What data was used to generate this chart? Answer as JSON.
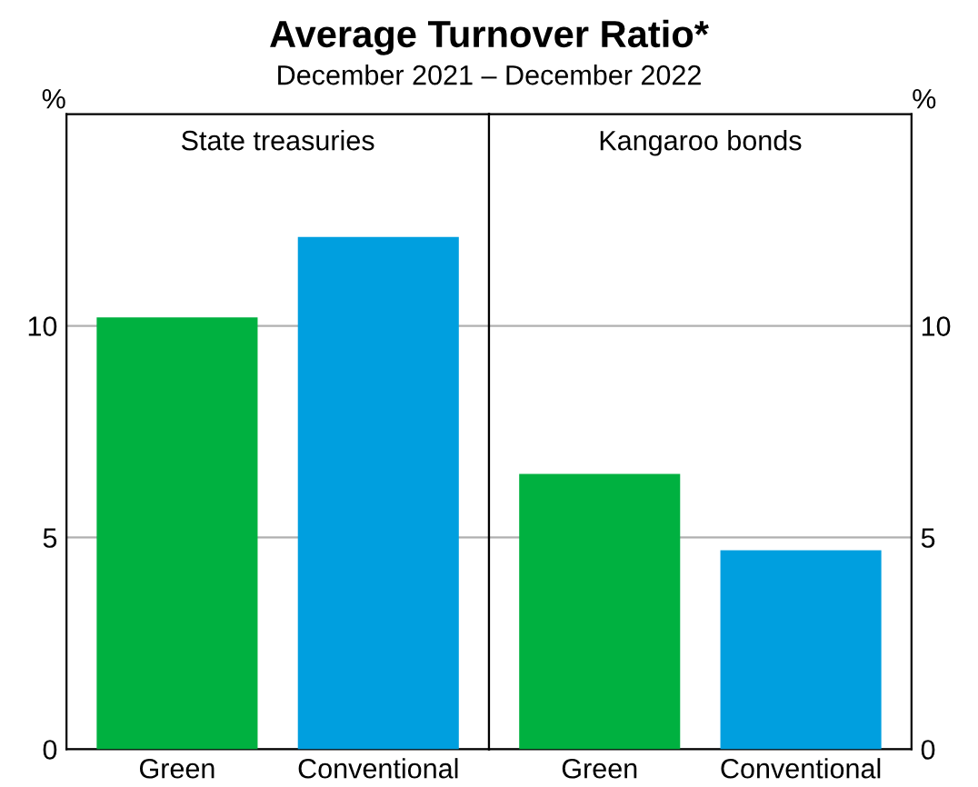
{
  "chart_data": [
    {
      "type": "bar",
      "title": "State treasuries",
      "ylabel": "%",
      "annotations": [
        "Average Turnover Ratio*",
        "December 2021 – December 2022"
      ],
      "categories": [
        "Green",
        "Conventional"
      ],
      "values": [
        10.2,
        12.1
      ],
      "colors": [
        "#00b140",
        "#009fdf"
      ],
      "ylim": [
        0,
        15
      ],
      "yticks": [
        0,
        5,
        10
      ],
      "grid": "y"
    },
    {
      "type": "bar",
      "title": "Kangaroo bonds",
      "ylabel": "%",
      "categories": [
        "Green",
        "Conventional"
      ],
      "values": [
        6.5,
        4.7
      ],
      "colors": [
        "#00b140",
        "#009fdf"
      ],
      "ylim": [
        0,
        15
      ],
      "yticks": [
        0,
        5,
        10
      ],
      "grid": "y"
    }
  ]
}
